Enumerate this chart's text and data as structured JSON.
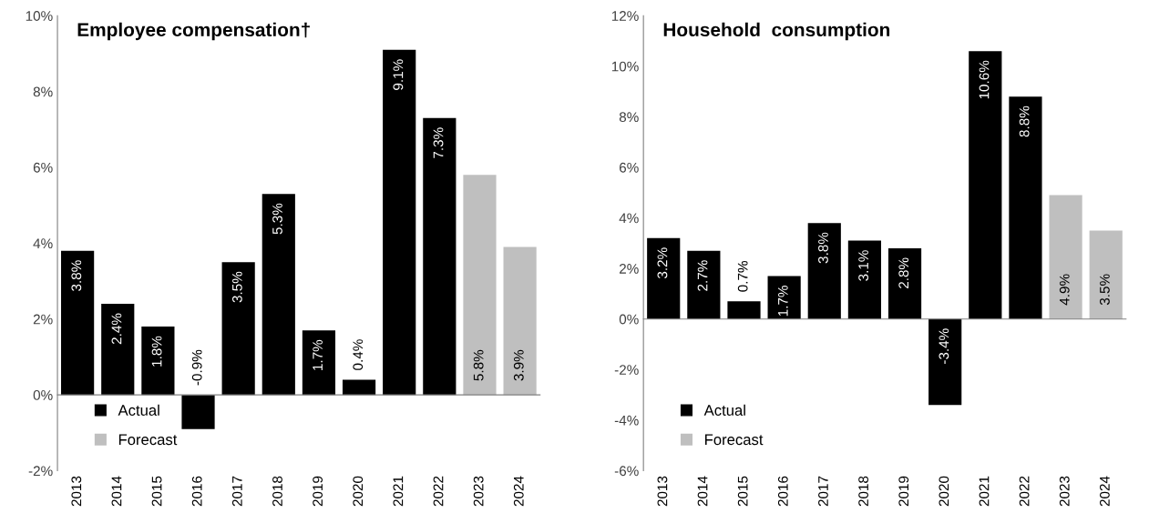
{
  "chart_data": [
    {
      "type": "bar",
      "title": "Employee compensation†",
      "categories": [
        "2013",
        "2014",
        "2015",
        "2016",
        "2017",
        "2018",
        "2019",
        "2020",
        "2021",
        "2022",
        "2023",
        "2024"
      ],
      "series": [
        {
          "name": "Actual",
          "color": "#000000",
          "values": [
            3.8,
            2.4,
            1.8,
            -0.9,
            3.5,
            5.3,
            1.7,
            0.4,
            9.1,
            7.3,
            null,
            null
          ],
          "value_labels": [
            "3.8%",
            "2.4%",
            "1.8%",
            "-0.9%",
            "3.5%",
            "5.3%",
            "1.7%",
            "0.4%",
            "9.1%",
            "7.3%",
            null,
            null
          ]
        },
        {
          "name": "Forecast",
          "color": "#bfbfbf",
          "values": [
            null,
            null,
            null,
            null,
            null,
            null,
            null,
            null,
            null,
            null,
            5.8,
            3.9
          ],
          "value_labels": [
            null,
            null,
            null,
            null,
            null,
            null,
            null,
            null,
            null,
            null,
            "5.8%",
            "3.9%"
          ]
        }
      ],
      "ylim": [
        -2,
        10
      ],
      "yticks": [
        {
          "value": -2,
          "label": "-2%"
        },
        {
          "value": 0,
          "label": "0%"
        },
        {
          "value": 2,
          "label": "2%"
        },
        {
          "value": 4,
          "label": "4%"
        },
        {
          "value": 6,
          "label": "6%"
        },
        {
          "value": 8,
          "label": "8%"
        },
        {
          "value": 10,
          "label": "10%"
        }
      ],
      "legend": "bottom left"
    },
    {
      "type": "bar",
      "title": "Household  consumption",
      "categories": [
        "2013",
        "2014",
        "2015",
        "2016",
        "2017",
        "2018",
        "2019",
        "2020",
        "2021",
        "2022",
        "2023",
        "2024"
      ],
      "series": [
        {
          "name": "Actual",
          "color": "#000000",
          "values": [
            3.2,
            2.7,
            0.7,
            1.7,
            3.8,
            3.1,
            2.8,
            -3.4,
            10.6,
            8.8,
            null,
            null
          ],
          "value_labels": [
            "3.2%",
            "2.7%",
            "0.7%",
            "1.7%",
            "3.8%",
            "3.1%",
            "2.8%",
            "-3.4%",
            "10.6%",
            "8.8%",
            null,
            null
          ]
        },
        {
          "name": "Forecast",
          "color": "#bfbfbf",
          "values": [
            null,
            null,
            null,
            null,
            null,
            null,
            null,
            null,
            null,
            null,
            4.9,
            3.5
          ],
          "value_labels": [
            null,
            null,
            null,
            null,
            null,
            null,
            null,
            null,
            null,
            null,
            "4.9%",
            "3.5%"
          ]
        }
      ],
      "ylim": [
        -6,
        12
      ],
      "yticks": [
        {
          "value": -6,
          "label": "-6%"
        },
        {
          "value": -4,
          "label": "-4%"
        },
        {
          "value": -2,
          "label": "-2%"
        },
        {
          "value": 0,
          "label": "0%"
        },
        {
          "value": 2,
          "label": "2%"
        },
        {
          "value": 4,
          "label": "4%"
        },
        {
          "value": 6,
          "label": "6%"
        },
        {
          "value": 8,
          "label": "8%"
        },
        {
          "value": 10,
          "label": "10%"
        },
        {
          "value": 12,
          "label": "12%"
        }
      ],
      "legend": "bottom left"
    }
  ]
}
